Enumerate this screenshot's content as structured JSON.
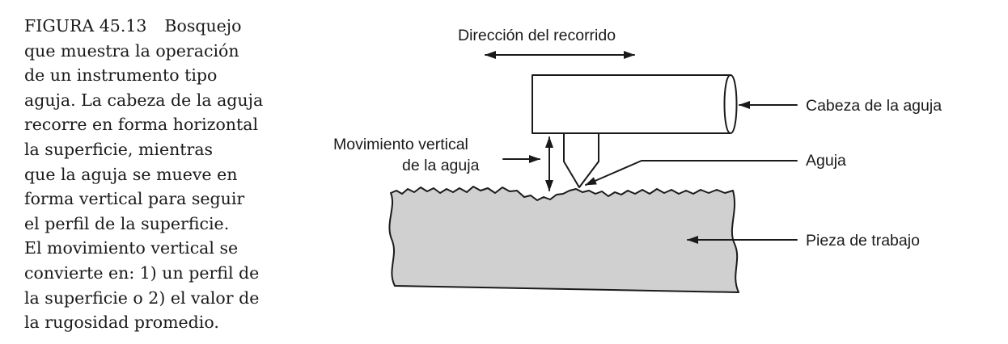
{
  "caption": {
    "figure_number": "FIGURA 45.13",
    "lines": [
      "Bosquejo",
      "que muestra la operación",
      "de un instrumento tipo",
      "aguja. La cabeza de la aguja",
      "recorre en forma horizontal",
      "la superficie, mientras",
      "que la aguja se mueve en",
      "forma vertical para seguir",
      "el perfil de la superficie.",
      "El movimiento vertical se",
      "convierte en: 1) un perfil de",
      "la superficie o 2) el valor de",
      "la rugosidad promedio."
    ]
  },
  "diagram": {
    "travel_direction_label": "Dirección del recorrido",
    "vertical_movement_label_line1": "Movimiento vertical",
    "vertical_movement_label_line2": "de la aguja",
    "stylus_head_label": "Cabeza de la aguja",
    "stylus_label": "Aguja",
    "workpiece_label": "Pieza de trabajo",
    "colors": {
      "ink": "#1a1a1a",
      "workpiece_fill": "#d0d0d0",
      "background": "#ffffff"
    }
  }
}
